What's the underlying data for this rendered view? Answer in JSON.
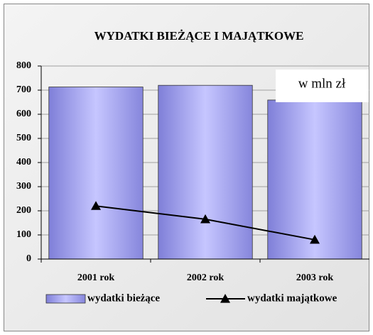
{
  "chart_data": {
    "type": "bar",
    "title": "WYDATKI BIEŻĄCE I MAJĄTKOWE",
    "annotation": "w mln zł",
    "categories": [
      "2001 rok",
      "2002 rok",
      "2003 rok"
    ],
    "series": [
      {
        "name": "wydatki bieżące",
        "type": "bar",
        "color": "#9999ff",
        "values": [
          713,
          720,
          659
        ]
      },
      {
        "name": "wydatki majątkowe",
        "type": "line",
        "color": "#000000",
        "values": [
          220,
          165,
          80
        ]
      }
    ],
    "ylim": [
      0,
      800
    ],
    "yticks": [
      0,
      100,
      200,
      300,
      400,
      500,
      600,
      700,
      800
    ],
    "grid": true,
    "legend": "bottom"
  }
}
